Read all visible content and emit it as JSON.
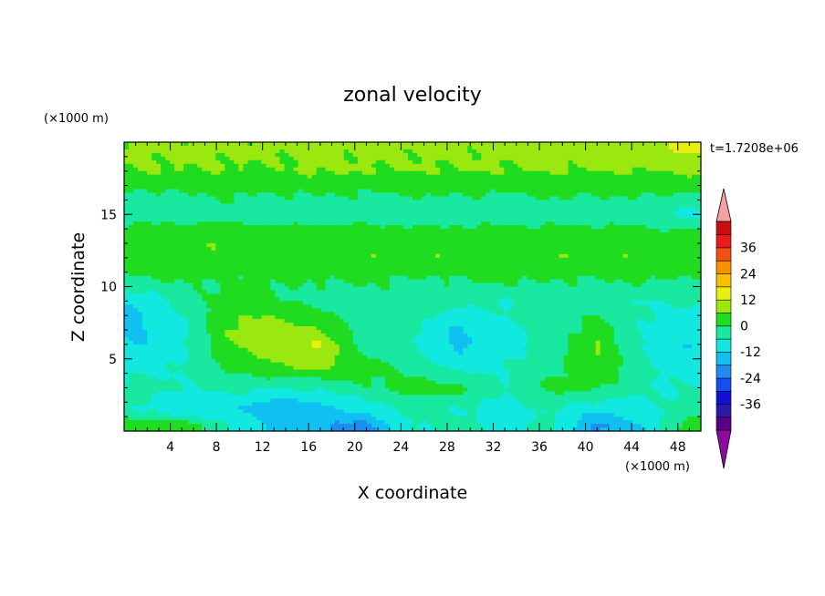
{
  "chart_data": {
    "type": "heatmap",
    "title": "zonal velocity",
    "xlabel": "X coordinate",
    "ylabel": "Z coordinate",
    "x_unit": "(×1000 m)",
    "y_unit": "(×1000 m)",
    "time_label": "t=1.7208e+06",
    "xlim": [
      0,
      50
    ],
    "ylim": [
      0,
      20
    ],
    "x_ticks": [
      4,
      8,
      12,
      16,
      20,
      24,
      28,
      32,
      36,
      40,
      44,
      48
    ],
    "y_ticks": [
      5,
      10,
      15
    ],
    "colorbar": {
      "levels": [
        -42,
        -36,
        -30,
        -24,
        -18,
        -12,
        -6,
        0,
        6,
        12,
        18,
        24,
        30,
        36,
        42
      ],
      "tick_labels": [
        36,
        24,
        12,
        0,
        -12,
        -24,
        -36
      ],
      "colors": [
        "#5a0088",
        "#2a1aa8",
        "#1010d8",
        "#1450ee",
        "#1e8cf0",
        "#10c0f0",
        "#10e8e0",
        "#18e8a0",
        "#20dc20",
        "#9ae810",
        "#e8f010",
        "#f8c000",
        "#f89000",
        "#f05010",
        "#e81a1a",
        "#c81010"
      ],
      "over_color": "#f4a0a0",
      "under_color": "#8c0ca0"
    },
    "field": {
      "description": "zonal velocity contours",
      "z_levels_km": [
        19.5,
        18.0,
        16.5,
        15.0,
        13.5,
        12.0,
        10.5,
        9.0,
        7.5,
        6.0,
        4.5,
        3.0,
        1.5,
        0.4
      ],
      "x_km": [
        1,
        5,
        9,
        13,
        17,
        21,
        25,
        29,
        33,
        37,
        41,
        45,
        49
      ],
      "values": [
        [
          7,
          7,
          7,
          7,
          7,
          7,
          7,
          7,
          7,
          8,
          9,
          11,
          13
        ],
        [
          6,
          6,
          6,
          5,
          7,
          6,
          6,
          6,
          6,
          6,
          6,
          6,
          7
        ],
        [
          -1,
          0,
          1,
          0,
          1,
          0,
          1,
          1,
          0,
          1,
          1,
          1,
          0
        ],
        [
          -3,
          -4,
          -3,
          -4,
          -5,
          -4,
          -6,
          -5,
          -4,
          -4,
          -4,
          -6,
          -8
        ],
        [
          4,
          5,
          5,
          4,
          5,
          4,
          5,
          4,
          4,
          4,
          4,
          4,
          3
        ],
        [
          5,
          5,
          5,
          5,
          5,
          5,
          5,
          5,
          4,
          5,
          5,
          5,
          5
        ],
        [
          -2,
          1,
          0,
          1,
          0,
          1,
          -1,
          0,
          1,
          0,
          0,
          1,
          -1
        ],
        [
          -10,
          -5,
          3,
          0,
          -2,
          -3,
          -1,
          -3,
          -6,
          -3,
          -4,
          -6,
          -5
        ],
        [
          -14,
          -8,
          6,
          8,
          4,
          -4,
          -4,
          -12,
          -6,
          -5,
          2,
          -6,
          -10
        ],
        [
          -12,
          -8,
          6,
          10,
          12,
          -3,
          -6,
          -14,
          -8,
          -4,
          6,
          -6,
          -12
        ],
        [
          -8,
          -6,
          2,
          6,
          8,
          3,
          -3,
          -9,
          -6,
          -2,
          6,
          -4,
          -10
        ],
        [
          -4,
          -6,
          -4,
          -6,
          -5,
          -1,
          3,
          2,
          -6,
          2,
          1,
          -6,
          -6
        ],
        [
          -6,
          -12,
          -10,
          -18,
          -14,
          -10,
          -4,
          -6,
          -8,
          -6,
          -10,
          -8,
          -4
        ],
        [
          4,
          3,
          -6,
          -14,
          -18,
          -20,
          -6,
          -4,
          -8,
          -4,
          -20,
          -12,
          4
        ]
      ]
    }
  }
}
